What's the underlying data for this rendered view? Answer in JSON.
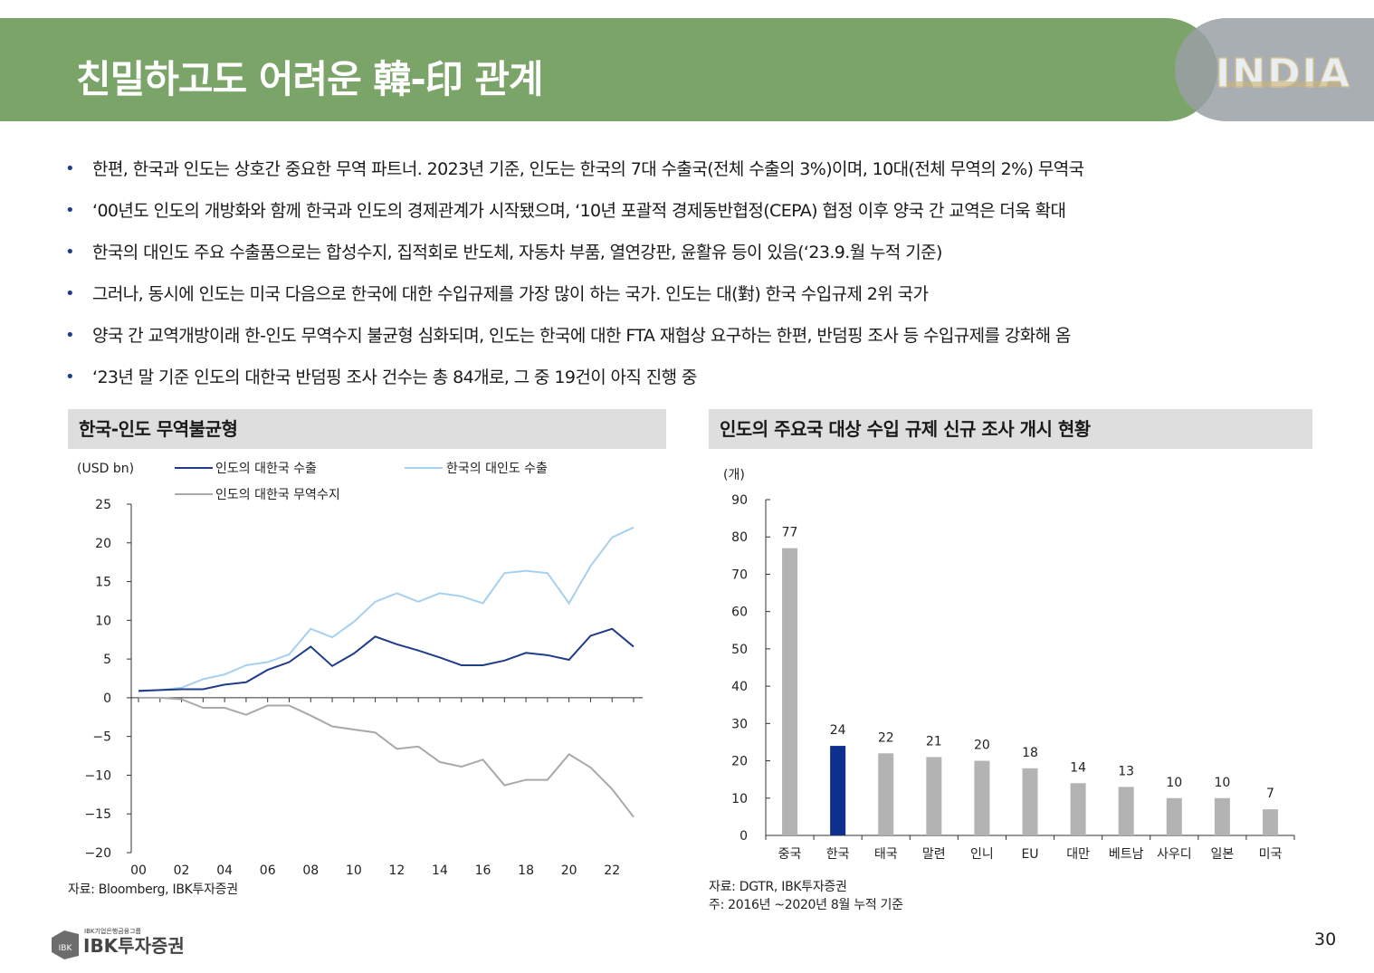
{
  "header": {
    "title": "친밀하고도 어려운 韓-印 관계",
    "badge_text": "INDIA",
    "colors": {
      "banner": "#7ba469",
      "badge_bg": "#9aa0a6"
    }
  },
  "bullets": [
    "한편, 한국과 인도는 상호간 중요한 무역 파트너. 2023년 기준, 인도는 한국의 7대 수출국(전체 수출의 3%)이며, 10대(전체 무역의 2%) 무역국",
    "‘00년도 인도의 개방화와 함께 한국과 인도의 경제관계가 시작됐으며, ‘10년 포괄적 경제동반협정(CEPA) 협정 이후 양국 간 교역은 더욱 확대",
    "한국의 대인도 주요 수출품으로는 합성수지, 집적회로 반도체, 자동차 부품, 열연강판, 윤활유 등이 있음(‘23.9.월 누적 기준)",
    "그러나, 동시에 인도는 미국 다음으로 한국에 대한 수입규제를 가장 많이 하는 국가. 인도는 대(對) 한국 수입규제 2위 국가",
    "양국 간 교역개방이래 한-인도 무역수지 불균형 심화되며, 인도는 한국에 대한 FTA 재협상 요구하는 한편, 반덤핑 조사 등 수입규제를 강화해 옴",
    "‘23년 말 기준 인도의 대한국 반덤핑 조사 건수는 총 84개로, 그 중 19건이 아직 진행 중"
  ],
  "bullet_marker": "•",
  "left_panel": {
    "title": "한국-인도 무역불균형",
    "source": "자료: Bloomberg, IBK투자증권"
  },
  "right_panel": {
    "title": "인도의 주요국 대상 수입 규제 신규 조사 개시 현황",
    "source": "자료: DGTR, IBK투자증권",
    "note": "주: 2016년 ~2020년 8월 누적 기준"
  },
  "chart_data": [
    {
      "type": "line",
      "title": "한국-인도 무역불균형",
      "unit_label": "(USD bn)",
      "ylim": [
        -20,
        25
      ],
      "yticks": [
        25,
        20,
        15,
        10,
        5,
        0,
        -5,
        -10,
        -15,
        -20
      ],
      "ytick_labels": [
        "25",
        "20",
        "15",
        "10",
        "5",
        "0",
        "−5",
        "−10",
        "−15",
        "−20"
      ],
      "x": [
        2000,
        2001,
        2002,
        2003,
        2004,
        2005,
        2006,
        2007,
        2008,
        2009,
        2010,
        2011,
        2012,
        2013,
        2014,
        2015,
        2016,
        2017,
        2018,
        2019,
        2020,
        2021,
        2022,
        2023
      ],
      "xtick_values": [
        2000,
        2002,
        2004,
        2006,
        2008,
        2010,
        2012,
        2014,
        2016,
        2018,
        2020,
        2022
      ],
      "xtick_labels": [
        "00",
        "02",
        "04",
        "06",
        "08",
        "10",
        "12",
        "14",
        "16",
        "18",
        "20",
        "22"
      ],
      "series": [
        {
          "name": "인도의 대한국 수출",
          "color": "#1f3c88",
          "values": [
            0.9,
            1.0,
            1.1,
            1.1,
            1.7,
            2.0,
            3.6,
            4.6,
            6.6,
            4.1,
            5.7,
            7.9,
            6.9,
            6.1,
            5.2,
            4.2,
            4.2,
            4.8,
            5.8,
            5.5,
            4.9,
            8.0,
            8.9,
            6.6
          ]
        },
        {
          "name": "한국의 대인도 수출",
          "color": "#a6d0f0",
          "values": [
            0.8,
            1.0,
            1.3,
            2.4,
            3.0,
            4.2,
            4.6,
            5.6,
            8.9,
            7.8,
            9.8,
            12.4,
            13.5,
            12.4,
            13.5,
            13.1,
            12.2,
            16.1,
            16.4,
            16.1,
            12.2,
            17.0,
            20.7,
            22.0
          ]
        },
        {
          "name": "인도의 대한국 무역수지",
          "color": "#a9a9a9",
          "values": [
            0.0,
            0.0,
            -0.2,
            -1.3,
            -1.3,
            -2.2,
            -1.0,
            -1.0,
            -2.3,
            -3.7,
            -4.1,
            -4.5,
            -6.6,
            -6.3,
            -8.3,
            -8.9,
            -8.0,
            -11.3,
            -10.6,
            -10.6,
            -7.3,
            -9.0,
            -11.8,
            -15.4
          ]
        }
      ]
    },
    {
      "type": "bar",
      "title": "인도의 주요국 대상 수입 규제 신규 조사 개시 현황",
      "unit_label": "(개)",
      "ylim": [
        0,
        90
      ],
      "yticks": [
        0,
        10,
        20,
        30,
        40,
        50,
        60,
        70,
        80,
        90
      ],
      "categories": [
        "중국",
        "한국",
        "태국",
        "말련",
        "인니",
        "EU",
        "대만",
        "베트남",
        "사우디",
        "일본",
        "미국"
      ],
      "values": [
        77,
        24,
        22,
        21,
        20,
        18,
        14,
        13,
        10,
        10,
        7
      ],
      "highlight": "한국",
      "colors": {
        "default": "#b3b3b3",
        "highlight": "#0f2f8f"
      }
    }
  ],
  "footer": {
    "company_small": "IBK기업은행금융그룹",
    "company": "IBK투자증권",
    "page_number": "30"
  }
}
